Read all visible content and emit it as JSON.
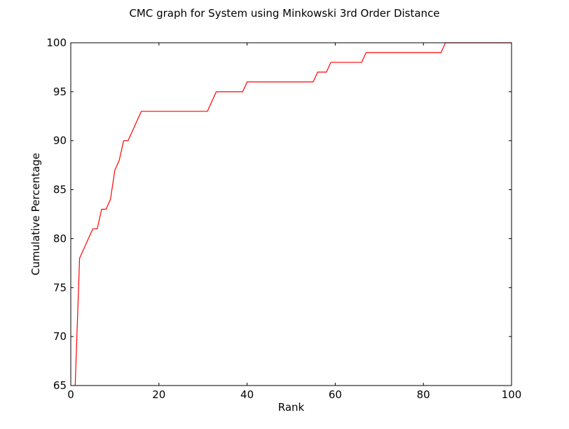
{
  "chart_data": {
    "type": "line",
    "title": "CMC graph for System using Minkowski 3rd Order Distance",
    "xlabel": "Rank",
    "ylabel": "Cumulative Percentage",
    "xlim": [
      0,
      100
    ],
    "ylim": [
      65,
      100
    ],
    "xticks": [
      0,
      20,
      40,
      60,
      80,
      100
    ],
    "yticks": [
      65,
      70,
      75,
      80,
      85,
      90,
      95,
      100
    ],
    "grid": false,
    "legend": "none",
    "series": [
      {
        "color": "#ff0000",
        "x": [
          1,
          2,
          3,
          4,
          5,
          6,
          7,
          8,
          9,
          10,
          11,
          12,
          13,
          14,
          15,
          16,
          17,
          18,
          19,
          20,
          21,
          22,
          23,
          24,
          25,
          26,
          27,
          28,
          29,
          30,
          31,
          32,
          33,
          34,
          35,
          36,
          37,
          38,
          39,
          40,
          41,
          42,
          43,
          44,
          45,
          46,
          47,
          48,
          49,
          50,
          51,
          52,
          53,
          54,
          55,
          56,
          57,
          58,
          59,
          60,
          61,
          62,
          63,
          64,
          65,
          66,
          67,
          68,
          69,
          70,
          71,
          72,
          73,
          74,
          75,
          76,
          77,
          78,
          79,
          80,
          81,
          82,
          83,
          84,
          85,
          86,
          87,
          88,
          89,
          90,
          91,
          92,
          93,
          94,
          95,
          96,
          97,
          98,
          99,
          100
        ],
        "y": [
          65,
          78,
          79,
          80,
          81,
          81,
          83,
          83,
          84,
          87,
          88,
          90,
          90,
          91,
          92,
          93,
          93,
          93,
          93,
          93,
          93,
          93,
          93,
          93,
          93,
          93,
          93,
          93,
          93,
          93,
          93,
          94,
          95,
          95,
          95,
          95,
          95,
          95,
          95,
          96,
          96,
          96,
          96,
          96,
          96,
          96,
          96,
          96,
          96,
          96,
          96,
          96,
          96,
          96,
          96,
          97,
          97,
          97,
          98,
          98,
          98,
          98,
          98,
          98,
          98,
          98,
          99,
          99,
          99,
          99,
          99,
          99,
          99,
          99,
          99,
          99,
          99,
          99,
          99,
          99,
          99,
          99,
          99,
          99,
          100,
          100,
          100,
          100,
          100,
          100,
          100,
          100,
          100,
          100,
          100,
          100,
          100,
          100,
          100,
          100
        ]
      }
    ]
  }
}
